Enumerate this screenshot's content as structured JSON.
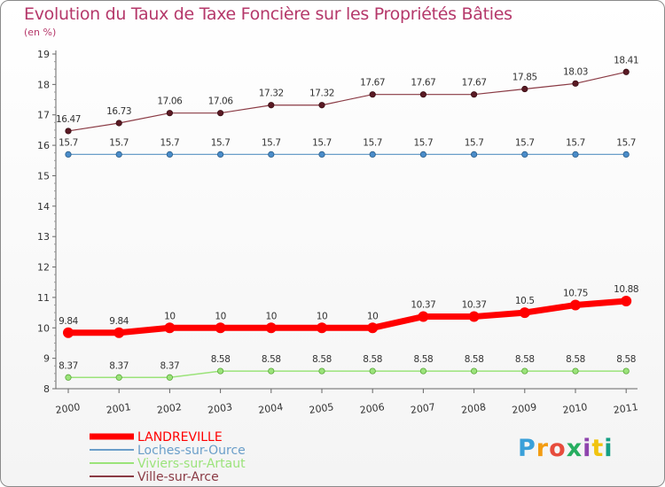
{
  "header": {
    "title": "Evolution du Taux de Taxe Foncière sur les Propriétés Bâties",
    "unit": "(en %)"
  },
  "logo": {
    "text": "Proxiti"
  },
  "chart_data": {
    "type": "line",
    "title": "Evolution du Taux de Taxe Foncière sur les Propriétés Bâties",
    "ylabel": "(en %)",
    "xlabel": "",
    "x": [
      "2000",
      "2001",
      "2002",
      "2003",
      "2004",
      "2005",
      "2006",
      "2007",
      "2008",
      "2009",
      "2010",
      "2011"
    ],
    "ylim": [
      8,
      19
    ],
    "yticks": [
      "8",
      "9",
      "10",
      "11",
      "12",
      "13",
      "14",
      "15",
      "16",
      "17",
      "18",
      "19"
    ],
    "grid": false,
    "legend_position": "bottom-left",
    "series": [
      {
        "name": "LANDREVILLE",
        "color": "#ff0000",
        "values": [
          9.84,
          9.84,
          10,
          10,
          10,
          10,
          10,
          10.37,
          10.37,
          10.5,
          10.75,
          10.88
        ],
        "labels": [
          "9.84",
          "9.84",
          "10",
          "10",
          "10",
          "10",
          "10",
          "10.37",
          "10.37",
          "10.5",
          "10.75",
          "10.88"
        ]
      },
      {
        "name": "Loches-sur-Ource",
        "color": "#6a9ec9",
        "values": [
          15.7,
          15.7,
          15.7,
          15.7,
          15.7,
          15.7,
          15.7,
          15.7,
          15.7,
          15.7,
          15.7,
          15.7
        ],
        "labels": [
          "15.7",
          "15.7",
          "15.7",
          "15.7",
          "15.7",
          "15.7",
          "15.7",
          "15.7",
          "15.7",
          "15.7",
          "15.7",
          "15.7"
        ]
      },
      {
        "name": "Viviers-sur-Artaut",
        "color": "#9be37a",
        "values": [
          8.37,
          8.37,
          8.37,
          8.58,
          8.58,
          8.58,
          8.58,
          8.58,
          8.58,
          8.58,
          8.58,
          8.58
        ],
        "labels": [
          "8.37",
          "8.37",
          "8.37",
          "8.58",
          "8.58",
          "8.58",
          "8.58",
          "8.58",
          "8.58",
          "8.58",
          "8.58",
          "8.58"
        ]
      },
      {
        "name": "Ville-sur-Arce",
        "color": "#8a3a44",
        "values": [
          16.47,
          16.73,
          17.06,
          17.06,
          17.32,
          17.32,
          17.67,
          17.67,
          17.67,
          17.85,
          18.03,
          18.41
        ],
        "labels": [
          "16.47",
          "16.73",
          "17.06",
          "17.06",
          "17.32",
          "17.32",
          "17.67",
          "17.67",
          "17.67",
          "17.85",
          "18.03",
          "18.41"
        ]
      }
    ]
  }
}
